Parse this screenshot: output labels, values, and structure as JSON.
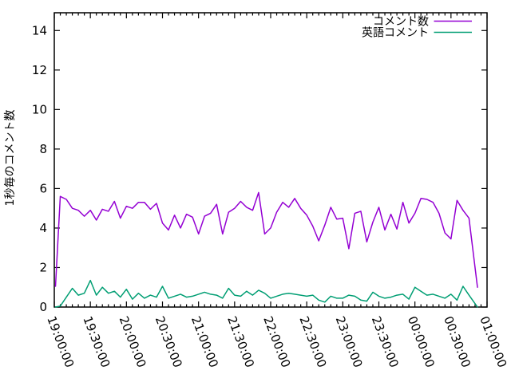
{
  "colors": {
    "background": "#ffffff",
    "border": "#000000",
    "text": "#000000",
    "series1": "#9400d3",
    "series2": "#009e73"
  },
  "chart_data": {
    "type": "line",
    "title": "",
    "xlabel": "",
    "ylabel": "1秒毎のコメント数",
    "grid": false,
    "legend_position": "top-right-inside",
    "ylim": [
      0,
      14.9
    ],
    "y_ticks": [
      0,
      2,
      4,
      6,
      8,
      10,
      12,
      14
    ],
    "x_range_minutes": [
      0,
      360
    ],
    "x_major_step_minutes": 30,
    "x_minor_step_minutes": 5,
    "x_tick_labels": [
      "19:00:00",
      "19:30:00",
      "20:00:00",
      "20:30:00",
      "21:00:00",
      "21:30:00",
      "22:00:00",
      "22:30:00",
      "23:00:00",
      "23:30:00",
      "00:00:00",
      "00:30:00",
      "01:00:00"
    ],
    "x_minutes": [
      1,
      5,
      10,
      15,
      20,
      25,
      30,
      35,
      40,
      45,
      50,
      55,
      60,
      65,
      70,
      75,
      80,
      85,
      90,
      95,
      100,
      105,
      110,
      115,
      120,
      125,
      130,
      135,
      140,
      145,
      150,
      155,
      160,
      165,
      170,
      175,
      180,
      185,
      190,
      195,
      200,
      205,
      210,
      215,
      220,
      225,
      230,
      235,
      240,
      245,
      250,
      255,
      260,
      265,
      270,
      275,
      280,
      285,
      290,
      295,
      300,
      305,
      310,
      315,
      320,
      325,
      330,
      335,
      340,
      345,
      352
    ],
    "series": [
      {
        "name": "コメント数",
        "color": "#9400d3",
        "values": [
          1.05,
          5.6,
          5.45,
          5.0,
          4.9,
          4.6,
          4.9,
          4.4,
          4.95,
          4.85,
          5.35,
          4.5,
          5.1,
          5.0,
          5.3,
          5.3,
          4.95,
          5.25,
          4.25,
          3.9,
          4.65,
          4.0,
          4.7,
          4.55,
          3.7,
          4.6,
          4.75,
          5.2,
          3.7,
          4.8,
          5.0,
          5.35,
          5.05,
          4.9,
          5.8,
          3.7,
          4.0,
          4.8,
          5.3,
          5.05,
          5.5,
          5.0,
          4.65,
          4.1,
          3.35,
          4.15,
          5.05,
          4.45,
          4.5,
          2.95,
          4.75,
          4.85,
          3.3,
          4.3,
          5.05,
          3.9,
          4.7,
          3.95,
          5.3,
          4.25,
          4.75,
          5.5,
          5.45,
          5.3,
          4.75,
          3.75,
          3.45,
          5.4,
          4.9,
          4.5,
          1.0
        ]
      },
      {
        "name": "英語コメント",
        "color": "#009e73",
        "values": [
          0,
          0.05,
          0.5,
          0.95,
          0.6,
          0.7,
          1.35,
          0.6,
          1.0,
          0.7,
          0.8,
          0.5,
          0.9,
          0.4,
          0.7,
          0.45,
          0.6,
          0.5,
          1.05,
          0.45,
          0.55,
          0.65,
          0.5,
          0.55,
          0.65,
          0.75,
          0.65,
          0.6,
          0.45,
          0.95,
          0.6,
          0.55,
          0.8,
          0.6,
          0.85,
          0.7,
          0.45,
          0.55,
          0.65,
          0.7,
          0.65,
          0.6,
          0.55,
          0.6,
          0.35,
          0.25,
          0.55,
          0.45,
          0.45,
          0.6,
          0.55,
          0.35,
          0.3,
          0.75,
          0.55,
          0.45,
          0.5,
          0.6,
          0.65,
          0.4,
          1.0,
          0.8,
          0.6,
          0.65,
          0.55,
          0.45,
          0.65,
          0.35,
          1.05,
          0.6,
          0
        ]
      }
    ]
  }
}
